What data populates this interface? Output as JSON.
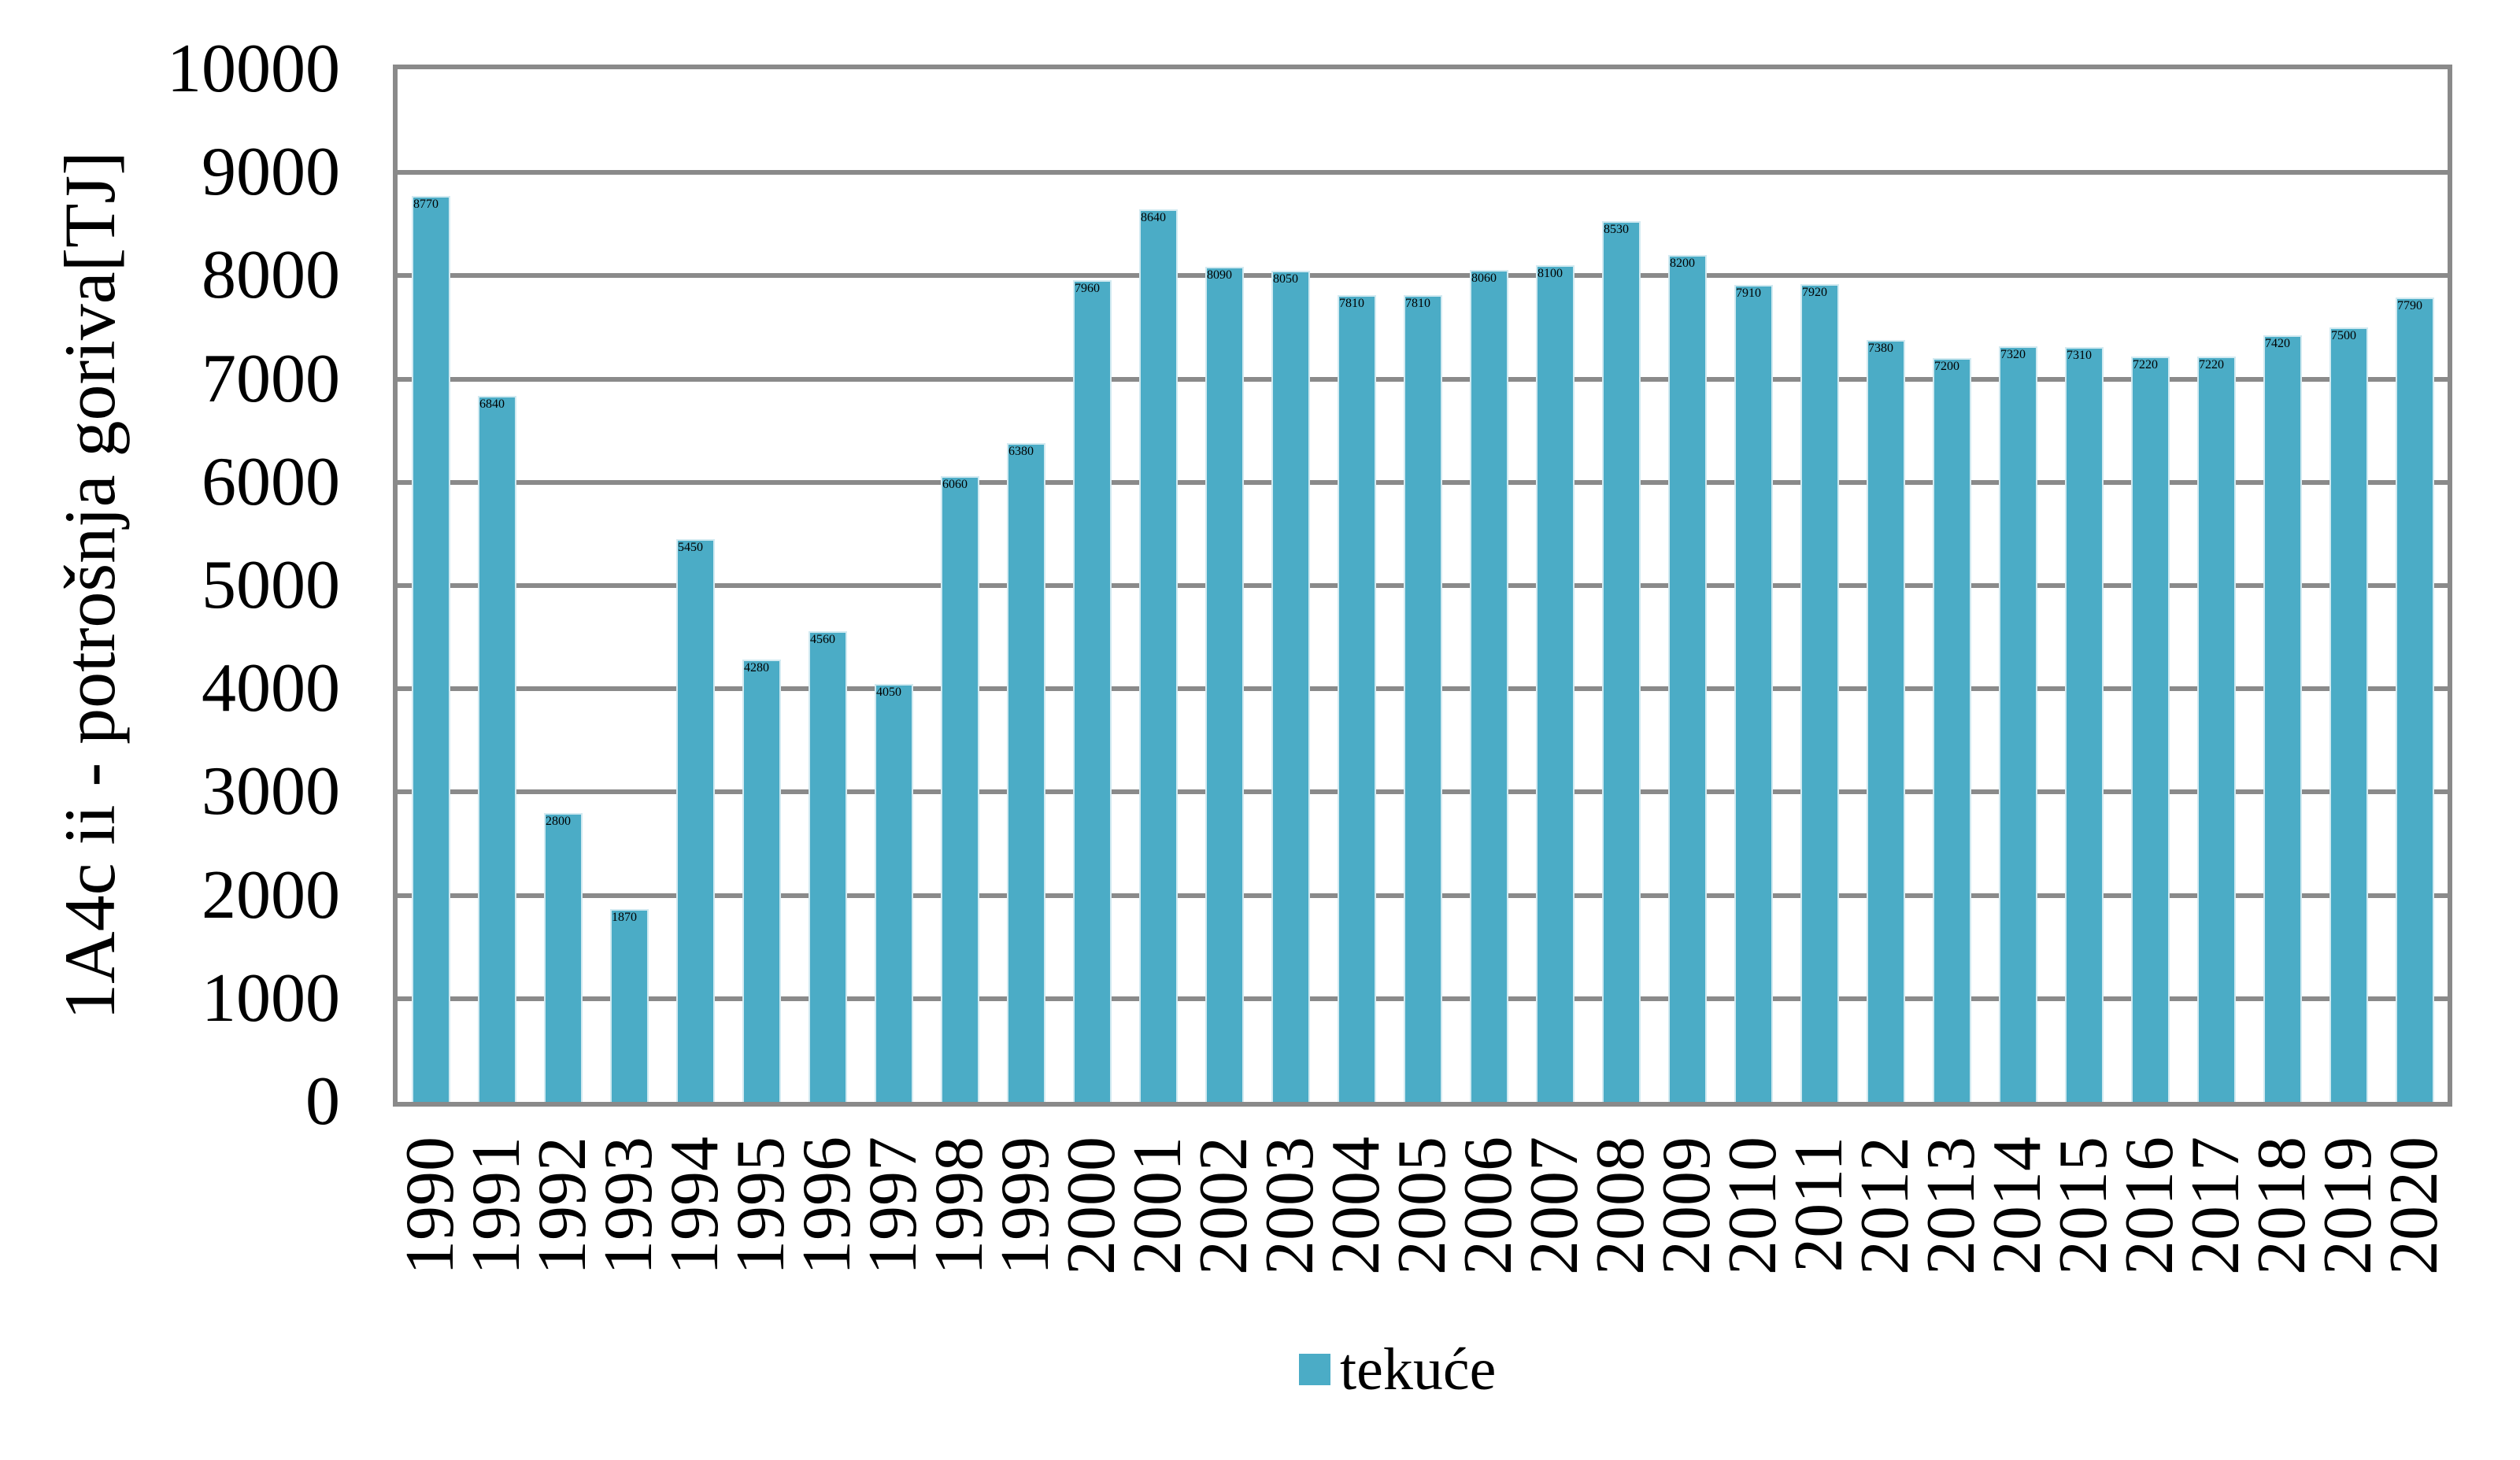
{
  "chart_data": {
    "type": "bar",
    "title": "",
    "xlabel": "",
    "ylabel": "1A4c ii - potrošnja goriva[TJ]",
    "categories": [
      "1990",
      "1991",
      "1992",
      "1993",
      "1994",
      "1995",
      "1996",
      "1997",
      "1998",
      "1999",
      "2000",
      "2001",
      "2002",
      "2003",
      "2004",
      "2005",
      "2006",
      "2007",
      "2008",
      "2009",
      "2010",
      "2011",
      "2012",
      "2013",
      "2014",
      "2015",
      "2016",
      "2017",
      "2018",
      "2019",
      "2020"
    ],
    "series": [
      {
        "name": "tekuće",
        "color": "#4BACC6",
        "values": [
          8770,
          6840,
          2800,
          1870,
          5450,
          4280,
          4560,
          4050,
          6060,
          6380,
          7960,
          8640,
          8090,
          8050,
          7810,
          7810,
          8060,
          8100,
          8530,
          8200,
          7910,
          7920,
          7380,
          7200,
          7320,
          7310,
          7220,
          7220,
          7420,
          7500,
          7790
        ]
      }
    ],
    "ylim": [
      0,
      10000
    ],
    "yticks": [
      0,
      1000,
      2000,
      3000,
      4000,
      5000,
      6000,
      7000,
      8000,
      9000,
      10000
    ],
    "grid": true,
    "gridline_color": "#8a8a8a",
    "legend_position": "bottom"
  }
}
